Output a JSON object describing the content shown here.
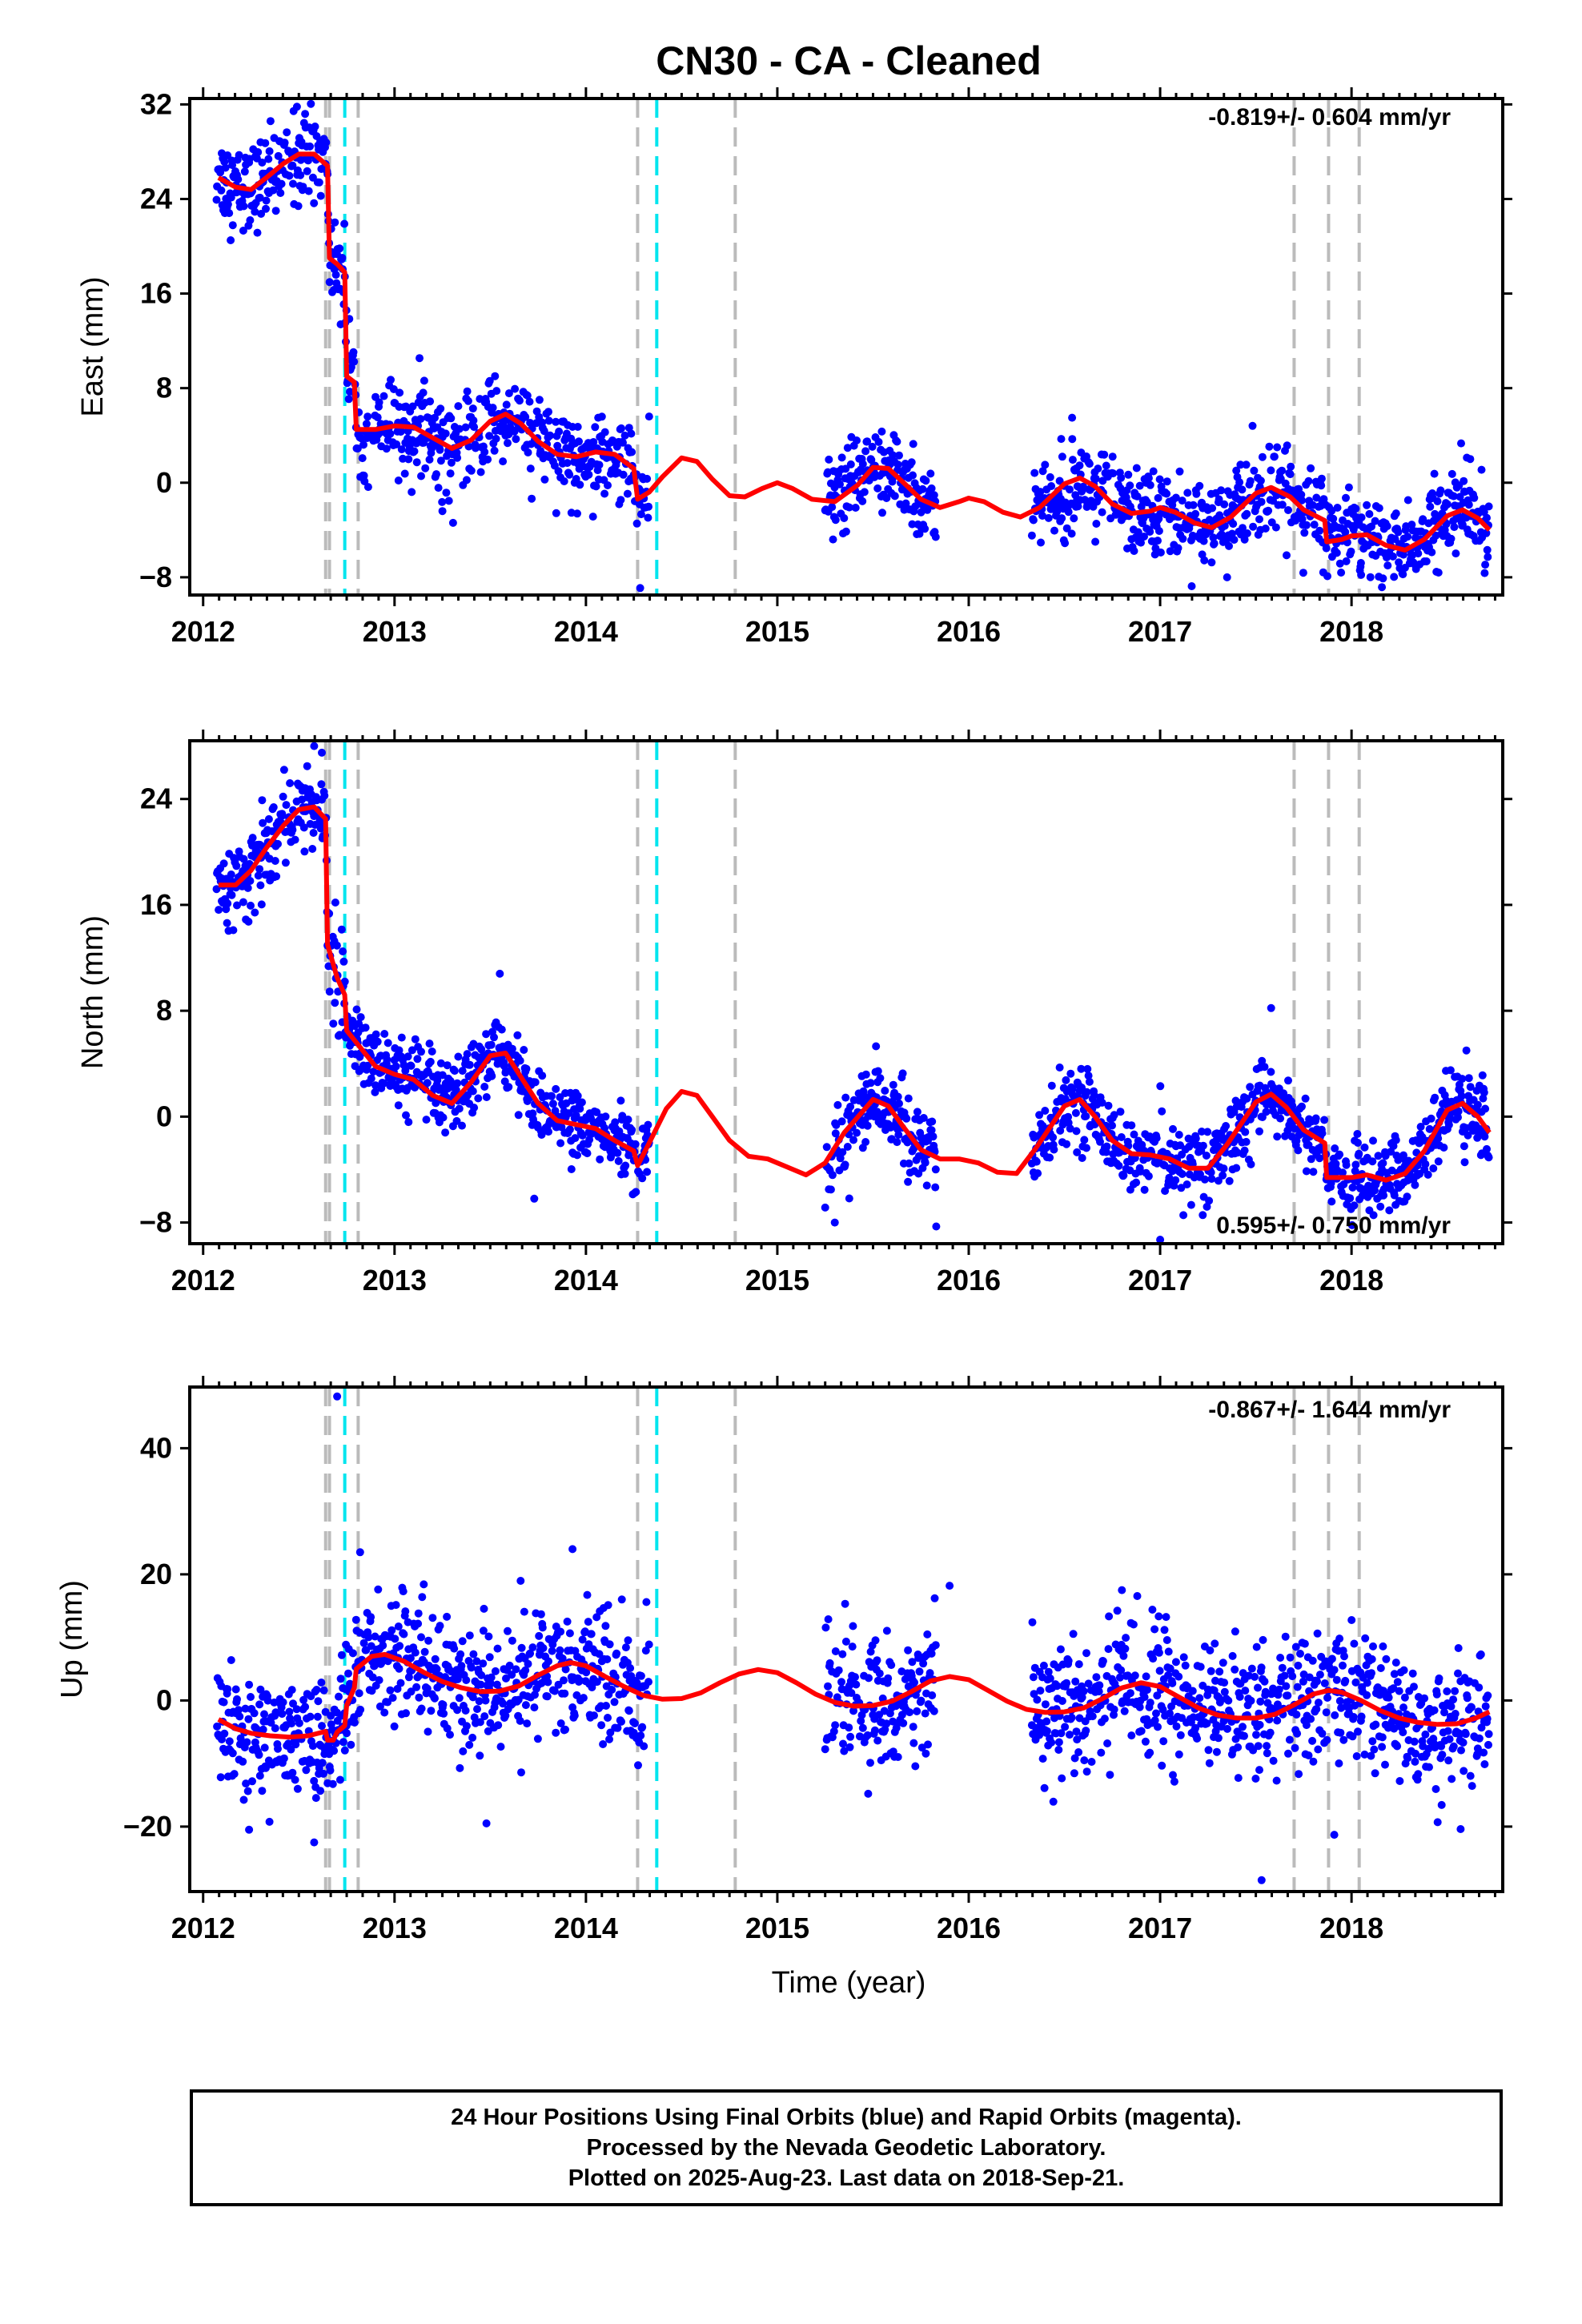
{
  "title": "CN30  - CA - Cleaned",
  "xlabel": "Time (year)",
  "footer": {
    "line1": "24 Hour Positions Using Final Orbits (blue) and Rapid Orbits (magenta).",
    "line2": "Processed by the Nevada Geodetic Laboratory.",
    "line3": "Plotted on 2025-Aug-23. Last data on 2018-Sep-21."
  },
  "colors": {
    "data": "#0000ff",
    "model": "#ff0000",
    "step_generic": "#bbbbbb",
    "step_equipment": "#00e5ee"
  },
  "chart_data": [
    {
      "type": "scatter",
      "component": "East",
      "ylabel": "East (mm)",
      "xlim": [
        2011.93,
        2018.79
      ],
      "ylim": [
        -9.5,
        32.5
      ],
      "yticks": [
        32,
        24,
        16,
        8,
        0,
        -8
      ],
      "xticks": [
        2012,
        2013,
        2014,
        2015,
        2016,
        2017,
        2018
      ],
      "rate_label": "-0.819+/- 0.604 mm/yr",
      "rate_label_position": "top-right",
      "model_line": [
        [
          2012.08,
          25.8
        ],
        [
          2012.17,
          25.0
        ],
        [
          2012.25,
          24.8
        ],
        [
          2012.33,
          25.8
        ],
        [
          2012.42,
          27.0
        ],
        [
          2012.5,
          27.8
        ],
        [
          2012.58,
          27.8
        ],
        [
          2012.65,
          26.8
        ],
        [
          2012.66,
          19.0
        ],
        [
          2012.7,
          18.5
        ],
        [
          2012.74,
          17.8
        ],
        [
          2012.75,
          9.0
        ],
        [
          2012.79,
          8.5
        ],
        [
          2012.8,
          4.5
        ],
        [
          2012.9,
          4.5
        ],
        [
          2013.0,
          4.8
        ],
        [
          2013.1,
          4.7
        ],
        [
          2013.2,
          3.8
        ],
        [
          2013.3,
          2.9
        ],
        [
          2013.4,
          3.6
        ],
        [
          2013.5,
          5.2
        ],
        [
          2013.58,
          5.8
        ],
        [
          2013.66,
          5.0
        ],
        [
          2013.75,
          3.5
        ],
        [
          2013.85,
          2.4
        ],
        [
          2013.95,
          2.2
        ],
        [
          2014.05,
          2.6
        ],
        [
          2014.15,
          2.4
        ],
        [
          2014.25,
          1.2
        ],
        [
          2014.27,
          -1.4
        ],
        [
          2014.33,
          -0.8
        ],
        [
          2014.4,
          0.5
        ],
        [
          2014.5,
          2.1
        ],
        [
          2014.58,
          1.8
        ],
        [
          2014.66,
          0.3
        ],
        [
          2014.75,
          -1.1
        ],
        [
          2014.83,
          -1.2
        ],
        [
          2014.92,
          -0.5
        ],
        [
          2015.0,
          0.0
        ],
        [
          2015.08,
          -0.5
        ],
        [
          2015.18,
          -1.4
        ],
        [
          2015.3,
          -1.6
        ],
        [
          2015.42,
          -0.2
        ],
        [
          2015.5,
          1.3
        ],
        [
          2015.58,
          1.2
        ],
        [
          2015.66,
          0.0
        ],
        [
          2015.75,
          -1.4
        ],
        [
          2015.85,
          -2.1
        ],
        [
          2015.95,
          -1.6
        ],
        [
          2016.0,
          -1.3
        ],
        [
          2016.08,
          -1.6
        ],
        [
          2016.18,
          -2.5
        ],
        [
          2016.27,
          -2.9
        ],
        [
          2016.37,
          -2.1
        ],
        [
          2016.5,
          -0.1
        ],
        [
          2016.58,
          0.4
        ],
        [
          2016.66,
          -0.3
        ],
        [
          2016.75,
          -1.8
        ],
        [
          2016.85,
          -2.6
        ],
        [
          2016.95,
          -2.4
        ],
        [
          2017.0,
          -2.1
        ],
        [
          2017.08,
          -2.5
        ],
        [
          2017.18,
          -3.4
        ],
        [
          2017.27,
          -3.8
        ],
        [
          2017.37,
          -2.9
        ],
        [
          2017.5,
          -0.9
        ],
        [
          2017.58,
          -0.4
        ],
        [
          2017.68,
          -1.2
        ],
        [
          2017.75,
          -2.3
        ],
        [
          2017.86,
          -3.2
        ],
        [
          2017.87,
          -5.0
        ],
        [
          2017.95,
          -4.8
        ],
        [
          2018.0,
          -4.5
        ],
        [
          2018.08,
          -4.4
        ],
        [
          2018.18,
          -5.3
        ],
        [
          2018.28,
          -5.7
        ],
        [
          2018.38,
          -4.8
        ],
        [
          2018.5,
          -2.8
        ],
        [
          2018.58,
          -2.3
        ],
        [
          2018.66,
          -3.0
        ],
        [
          2018.72,
          -4.0
        ]
      ],
      "data_segments": [
        {
          "start": 2012.07,
          "end": 2012.65,
          "scatter": 1.8
        },
        {
          "start": 2012.65,
          "end": 2012.75,
          "scatter": 2.2
        },
        {
          "start": 2012.75,
          "end": 2014.33,
          "scatter": 1.9
        },
        {
          "start": 2015.25,
          "end": 2015.83,
          "scatter": 1.9
        },
        {
          "start": 2016.33,
          "end": 2018.72,
          "scatter": 1.7
        }
      ],
      "outliers": [
        [
          2012.49,
          31.8
        ],
        [
          2012.38,
          23.0
        ],
        [
          2013.25,
          -2.4
        ],
        [
          2014.33,
          5.6
        ],
        [
          2016.54,
          5.5
        ],
        [
          2017.35,
          -8.0
        ],
        [
          2018.05,
          -7.8
        ],
        [
          2018.62,
          2.0
        ]
      ]
    },
    {
      "type": "scatter",
      "component": "North",
      "ylabel": "North (mm)",
      "xlim": [
        2011.93,
        2018.79
      ],
      "ylim": [
        -9.6,
        28.4
      ],
      "yticks": [
        24,
        16,
        8,
        0,
        -8
      ],
      "xticks": [
        2012,
        2013,
        2014,
        2015,
        2016,
        2017,
        2018
      ],
      "rate_label": "0.595+/- 0.750 mm/yr",
      "rate_label_position": "bottom-right",
      "model_line": [
        [
          2012.08,
          17.5
        ],
        [
          2012.17,
          17.5
        ],
        [
          2012.25,
          18.6
        ],
        [
          2012.33,
          20.3
        ],
        [
          2012.42,
          22.0
        ],
        [
          2012.5,
          23.2
        ],
        [
          2012.58,
          23.4
        ],
        [
          2012.64,
          22.5
        ],
        [
          2012.65,
          13.0
        ],
        [
          2012.7,
          10.5
        ],
        [
          2012.74,
          9.2
        ],
        [
          2012.75,
          6.5
        ],
        [
          2012.8,
          5.6
        ],
        [
          2012.9,
          3.8
        ],
        [
          2013.0,
          3.2
        ],
        [
          2013.1,
          2.8
        ],
        [
          2013.2,
          1.6
        ],
        [
          2013.3,
          1.0
        ],
        [
          2013.4,
          2.6
        ],
        [
          2013.5,
          4.6
        ],
        [
          2013.58,
          4.8
        ],
        [
          2013.66,
          3.0
        ],
        [
          2013.75,
          1.0
        ],
        [
          2013.85,
          -0.3
        ],
        [
          2013.95,
          -0.6
        ],
        [
          2014.05,
          -0.9
        ],
        [
          2014.15,
          -1.8
        ],
        [
          2014.25,
          -2.6
        ],
        [
          2014.27,
          -3.7
        ],
        [
          2014.33,
          -2.0
        ],
        [
          2014.42,
          0.6
        ],
        [
          2014.5,
          1.9
        ],
        [
          2014.58,
          1.6
        ],
        [
          2014.66,
          0.0
        ],
        [
          2014.75,
          -1.8
        ],
        [
          2014.85,
          -3.0
        ],
        [
          2014.95,
          -3.2
        ],
        [
          2015.05,
          -3.8
        ],
        [
          2015.15,
          -4.4
        ],
        [
          2015.25,
          -3.5
        ],
        [
          2015.35,
          -1.2
        ],
        [
          2015.5,
          1.3
        ],
        [
          2015.58,
          0.8
        ],
        [
          2015.66,
          -0.8
        ],
        [
          2015.75,
          -2.5
        ],
        [
          2015.85,
          -3.2
        ],
        [
          2015.95,
          -3.2
        ],
        [
          2016.05,
          -3.5
        ],
        [
          2016.15,
          -4.2
        ],
        [
          2016.25,
          -4.3
        ],
        [
          2016.35,
          -2.4
        ],
        [
          2016.5,
          0.8
        ],
        [
          2016.58,
          1.3
        ],
        [
          2016.66,
          0.0
        ],
        [
          2016.75,
          -1.8
        ],
        [
          2016.85,
          -2.8
        ],
        [
          2016.95,
          -2.9
        ],
        [
          2017.05,
          -3.2
        ],
        [
          2017.15,
          -3.9
        ],
        [
          2017.25,
          -3.9
        ],
        [
          2017.35,
          -2.1
        ],
        [
          2017.5,
          1.1
        ],
        [
          2017.58,
          1.7
        ],
        [
          2017.66,
          0.7
        ],
        [
          2017.75,
          -1.0
        ],
        [
          2017.86,
          -2.0
        ],
        [
          2017.87,
          -4.6
        ],
        [
          2018.0,
          -4.6
        ],
        [
          2018.08,
          -4.4
        ],
        [
          2018.18,
          -4.8
        ],
        [
          2018.28,
          -4.3
        ],
        [
          2018.38,
          -2.6
        ],
        [
          2018.5,
          0.5
        ],
        [
          2018.58,
          1.0
        ],
        [
          2018.66,
          0.0
        ],
        [
          2018.72,
          -1.2
        ]
      ],
      "data_segments": [
        {
          "start": 2012.07,
          "end": 2012.65,
          "scatter": 1.4
        },
        {
          "start": 2012.65,
          "end": 2012.75,
          "scatter": 2.0
        },
        {
          "start": 2012.75,
          "end": 2014.33,
          "scatter": 1.3
        },
        {
          "start": 2015.25,
          "end": 2015.83,
          "scatter": 1.6
        },
        {
          "start": 2016.33,
          "end": 2018.72,
          "scatter": 1.4
        }
      ],
      "outliers": [
        [
          2012.58,
          28.0
        ],
        [
          2012.62,
          27.5
        ],
        [
          2013.55,
          10.8
        ],
        [
          2013.73,
          -6.2
        ],
        [
          2015.3,
          -8.0
        ],
        [
          2015.83,
          -8.3
        ],
        [
          2017.0,
          -9.3
        ],
        [
          2017.58,
          8.2
        ],
        [
          2018.6,
          5.0
        ]
      ]
    },
    {
      "type": "scatter",
      "component": "Up",
      "ylabel": "Up (mm)",
      "xlim": [
        2011.93,
        2018.79
      ],
      "ylim": [
        -30.3,
        49.7
      ],
      "yticks": [
        40,
        20,
        0,
        -20
      ],
      "xticks": [
        2012,
        2013,
        2014,
        2015,
        2016,
        2017,
        2018
      ],
      "rate_label": "-0.867+/- 1.644 mm/yr",
      "rate_label_position": "top-right",
      "model_line": [
        [
          2012.08,
          -3.0
        ],
        [
          2012.17,
          -4.5
        ],
        [
          2012.25,
          -5.2
        ],
        [
          2012.35,
          -5.6
        ],
        [
          2012.45,
          -5.8
        ],
        [
          2012.55,
          -5.6
        ],
        [
          2012.64,
          -4.9
        ],
        [
          2012.65,
          -6.3
        ],
        [
          2012.68,
          -6.3
        ],
        [
          2012.7,
          -5.0
        ],
        [
          2012.74,
          -4.0
        ],
        [
          2012.75,
          -0.8
        ],
        [
          2012.79,
          2.0
        ],
        [
          2012.8,
          5.0
        ],
        [
          2012.88,
          7.0
        ],
        [
          2012.95,
          7.3
        ],
        [
          2013.05,
          6.2
        ],
        [
          2013.15,
          4.5
        ],
        [
          2013.25,
          3.0
        ],
        [
          2013.35,
          2.0
        ],
        [
          2013.45,
          1.4
        ],
        [
          2013.55,
          1.5
        ],
        [
          2013.65,
          2.3
        ],
        [
          2013.75,
          4.0
        ],
        [
          2013.85,
          5.5
        ],
        [
          2013.92,
          6.0
        ],
        [
          2014.0,
          5.5
        ],
        [
          2014.1,
          3.8
        ],
        [
          2014.2,
          2.2
        ],
        [
          2014.3,
          0.8
        ],
        [
          2014.4,
          0.2
        ],
        [
          2014.5,
          0.3
        ],
        [
          2014.6,
          1.2
        ],
        [
          2014.7,
          2.8
        ],
        [
          2014.8,
          4.2
        ],
        [
          2014.9,
          4.9
        ],
        [
          2015.0,
          4.4
        ],
        [
          2015.1,
          2.8
        ],
        [
          2015.2,
          1.0
        ],
        [
          2015.3,
          -0.3
        ],
        [
          2015.4,
          -0.9
        ],
        [
          2015.5,
          -0.8
        ],
        [
          2015.6,
          -0.1
        ],
        [
          2015.7,
          1.4
        ],
        [
          2015.8,
          3.1
        ],
        [
          2015.9,
          3.8
        ],
        [
          2016.0,
          3.3
        ],
        [
          2016.1,
          1.6
        ],
        [
          2016.2,
          -0.1
        ],
        [
          2016.3,
          -1.4
        ],
        [
          2016.4,
          -1.9
        ],
        [
          2016.5,
          -1.8
        ],
        [
          2016.6,
          -1.2
        ],
        [
          2016.7,
          0.3
        ],
        [
          2016.8,
          2.0
        ],
        [
          2016.9,
          2.8
        ],
        [
          2017.0,
          2.2
        ],
        [
          2017.1,
          0.5
        ],
        [
          2017.2,
          -1.2
        ],
        [
          2017.3,
          -2.3
        ],
        [
          2017.4,
          -2.8
        ],
        [
          2017.5,
          -2.8
        ],
        [
          2017.6,
          -2.2
        ],
        [
          2017.7,
          -0.7
        ],
        [
          2017.8,
          1.0
        ],
        [
          2017.88,
          1.6
        ],
        [
          2017.95,
          1.3
        ],
        [
          2018.05,
          0.0
        ],
        [
          2018.15,
          -1.6
        ],
        [
          2018.25,
          -2.8
        ],
        [
          2018.35,
          -3.5
        ],
        [
          2018.45,
          -3.8
        ],
        [
          2018.55,
          -3.7
        ],
        [
          2018.65,
          -2.8
        ],
        [
          2018.72,
          -1.8
        ]
      ],
      "data_segments": [
        {
          "start": 2012.07,
          "end": 2012.75,
          "scatter": 4.5
        },
        {
          "start": 2012.75,
          "end": 2014.33,
          "scatter": 5.0
        },
        {
          "start": 2015.25,
          "end": 2015.83,
          "scatter": 5.0
        },
        {
          "start": 2016.33,
          "end": 2018.72,
          "scatter": 5.0
        }
      ],
      "outliers": [
        [
          2012.7,
          48.2
        ],
        [
          2012.82,
          23.5
        ],
        [
          2013.48,
          -19.5
        ],
        [
          2013.93,
          24.0
        ],
        [
          2012.58,
          -22.5
        ],
        [
          2012.24,
          -20.5
        ],
        [
          2017.53,
          -28.5
        ],
        [
          2017.91,
          -21.3
        ],
        [
          2018.45,
          -19.3
        ],
        [
          2018.57,
          -20.4
        ],
        [
          2016.8,
          17.5
        ],
        [
          2015.9,
          18.2
        ]
      ]
    }
  ],
  "step_lines": {
    "generic_dates": [
      2012.64,
      2012.66,
      2012.81,
      2014.27,
      2014.78,
      2017.7,
      2017.88,
      2018.04
    ],
    "equipment_dates": [
      2012.74,
      2014.37
    ]
  }
}
